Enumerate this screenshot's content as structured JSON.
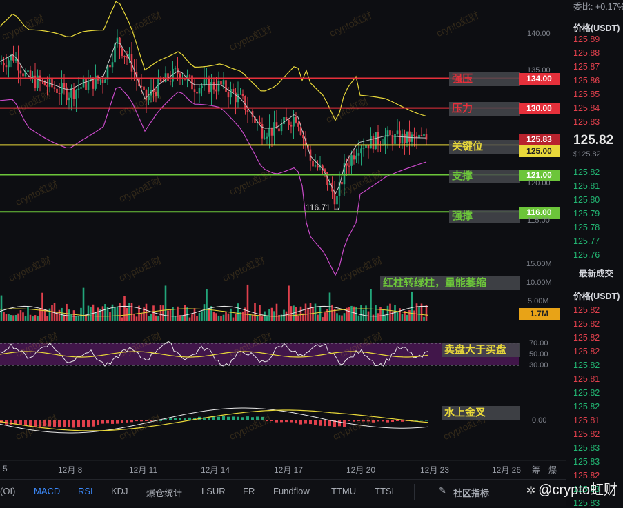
{
  "chart_data": [
    {
      "type": "candlestick",
      "symbol_quote": "USDT",
      "x_dates": [
        "12月8",
        "12月11",
        "12月14",
        "12月17",
        "12月20",
        "12月23",
        "12月26"
      ],
      "y_ticks": [
        115.0,
        120.0,
        125.0,
        130.0,
        135.0,
        140.0
      ],
      "ylim": [
        113,
        145
      ],
      "low_marker": {
        "label": "116.71 →",
        "value": 116.71
      },
      "levels": [
        {
          "name": "强压",
          "value": 134.0,
          "label": "134.00",
          "color": "#e6303b"
        },
        {
          "name": "压力",
          "value": 130.0,
          "label": "130.00",
          "color": "#e6303b"
        },
        {
          "name": "关键位",
          "value": 125.0,
          "label": "125.00",
          "color": "#e8d83a"
        },
        {
          "name": "支撑",
          "value": 121.0,
          "label": "121.00",
          "color": "#6cc53a"
        },
        {
          "name": "强撑",
          "value": 116.0,
          "label": "116.00",
          "color": "#6cc53a"
        }
      ],
      "last_price": {
        "value": 125.83,
        "label": "125.83"
      },
      "tick_labels_text": [
        "140.00",
        "135.00",
        "130.00",
        "125.00",
        "120.00",
        "115.00"
      ]
    },
    {
      "type": "bar",
      "name": "volume",
      "y_ticks": [
        "15.00M",
        "10.00M",
        "5.00M"
      ],
      "current_value": "1.7M",
      "annotation": "红柱转绿柱，量能萎缩"
    },
    {
      "type": "line",
      "name": "RSI",
      "y_ticks": [
        "70.00",
        "50.00",
        "30.00"
      ],
      "annotation": "卖盘大于买盘"
    },
    {
      "type": "bar",
      "name": "MACD",
      "y_ticks": [
        "0.00"
      ],
      "annotation": "水上金叉"
    }
  ],
  "x_axis": {
    "labels": [
      "5",
      "12月 8",
      "12月 11",
      "12月 14",
      "12月 17",
      "12月 20",
      "12月 23",
      "12月 26",
      "筹",
      "爆"
    ]
  },
  "right_panel": {
    "top_label": "委比: +0.17%",
    "price_header": "价格(USDT)",
    "asks": [
      "125.89",
      "125.88",
      "125.87",
      "125.86",
      "125.85",
      "125.84",
      "125.83"
    ],
    "current_price": "125.82",
    "current_price_sub": "$125.82",
    "bids": [
      "125.82",
      "125.81",
      "125.80",
      "125.79",
      "125.78",
      "125.77",
      "125.76"
    ],
    "trades_title": "最新成交",
    "trades_header": "价格(USDT)",
    "trades": [
      {
        "price": "125.82",
        "side": "red"
      },
      {
        "price": "125.82",
        "side": "red"
      },
      {
        "price": "125.82",
        "side": "red"
      },
      {
        "price": "125.82",
        "side": "red"
      },
      {
        "price": "125.82",
        "side": "green"
      },
      {
        "price": "125.81",
        "side": "red"
      },
      {
        "price": "125.82",
        "side": "green"
      },
      {
        "price": "125.82",
        "side": "green"
      },
      {
        "price": "125.81",
        "side": "red"
      },
      {
        "price": "125.82",
        "side": "red"
      },
      {
        "price": "125.83",
        "side": "green"
      },
      {
        "price": "125.83",
        "side": "green"
      },
      {
        "price": "125.82",
        "side": "red"
      },
      {
        "price": "125.83",
        "side": "green"
      },
      {
        "price": "125.83",
        "side": "green"
      }
    ]
  },
  "bottom_tabs": [
    "(OI)",
    "MACD",
    "RSI",
    "KDJ",
    "爆仓统计",
    "LSUR",
    "FR",
    "Fundflow",
    "TTMU",
    "TTSI"
  ],
  "active_tabs": [
    "MACD",
    "RSI"
  ],
  "community_label": "社区指标",
  "brand": "@crypto虹财",
  "watermark": "crypto虹财",
  "colors": {
    "up": "#22a57a",
    "down": "#e0404c",
    "upper_band": "#e8d83a",
    "lower_band": "#c94ac9",
    "middle_band": "#c7c7c7",
    "accent_blue": "#3d8cff"
  }
}
